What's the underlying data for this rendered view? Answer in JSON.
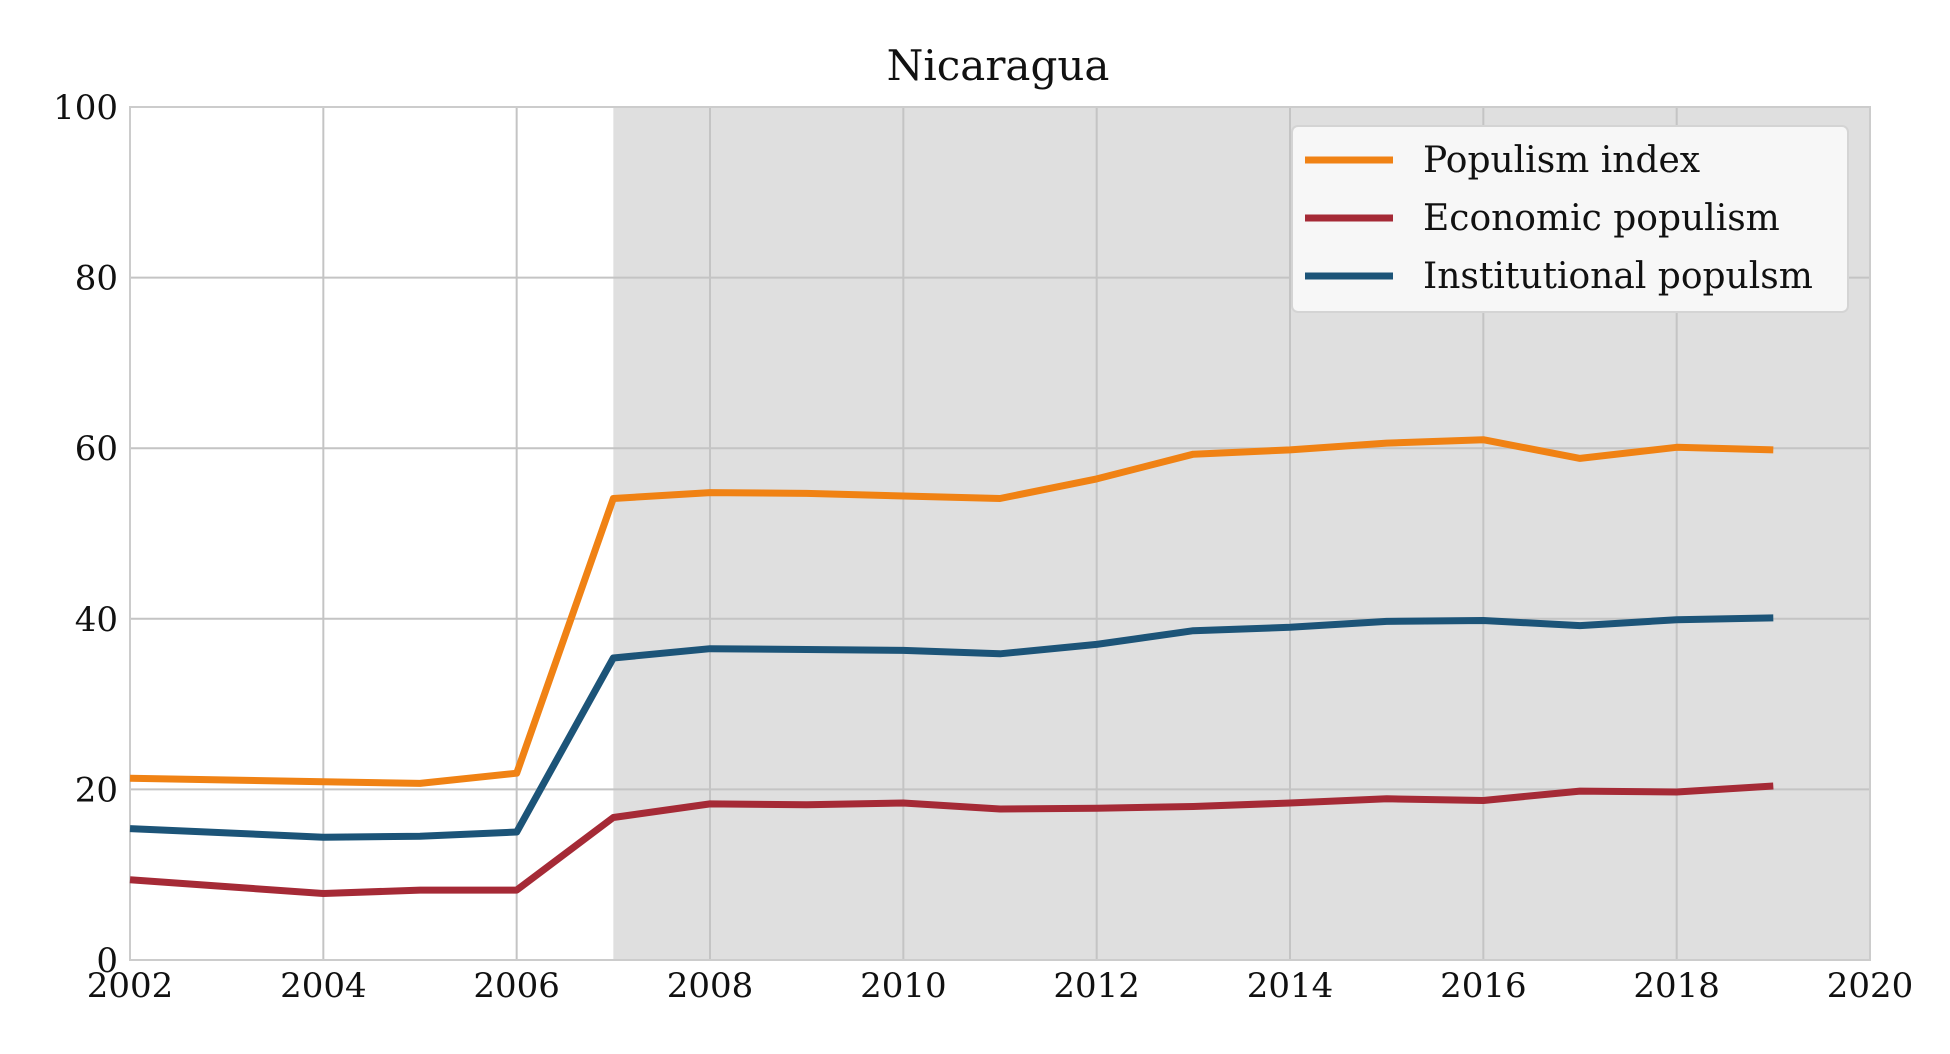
{
  "chart_data": {
    "type": "line",
    "title": "Nicaragua",
    "xlabel": "",
    "ylabel": "",
    "xlim": [
      2002,
      2020
    ],
    "ylim": [
      0,
      100
    ],
    "xticks": [
      2002,
      2004,
      2006,
      2008,
      2010,
      2012,
      2014,
      2016,
      2018,
      2020
    ],
    "yticks": [
      0,
      20,
      40,
      60,
      80,
      100
    ],
    "grid": true,
    "legend_position": "top-right",
    "shaded_region": {
      "x_start": 2007,
      "x_end": 2020,
      "color": "#dfdfdf"
    },
    "x": [
      2002,
      2004,
      2005,
      2006,
      2007,
      2008,
      2009,
      2010,
      2011,
      2012,
      2013,
      2014,
      2015,
      2016,
      2017,
      2018,
      2019
    ],
    "series": [
      {
        "name": "Populism index",
        "color": "#f08214",
        "values": [
          21.3,
          20.9,
          20.7,
          21.9,
          54.1,
          54.8,
          54.7,
          54.4,
          54.1,
          56.4,
          59.3,
          59.8,
          60.6,
          61.0,
          58.8,
          60.1,
          59.8
        ]
      },
      {
        "name": "Economic populism",
        "color": "#a52a36",
        "values": [
          9.4,
          7.8,
          8.2,
          8.2,
          16.7,
          18.3,
          18.2,
          18.4,
          17.7,
          17.8,
          18.0,
          18.4,
          18.9,
          18.7,
          19.8,
          19.7,
          20.4
        ]
      },
      {
        "name": "Institutional populsm",
        "color": "#1c5478",
        "values": [
          15.4,
          14.4,
          14.5,
          15.0,
          35.4,
          36.5,
          36.4,
          36.3,
          35.9,
          37.0,
          38.6,
          39.0,
          39.7,
          39.8,
          39.2,
          39.9,
          40.1
        ]
      }
    ]
  }
}
